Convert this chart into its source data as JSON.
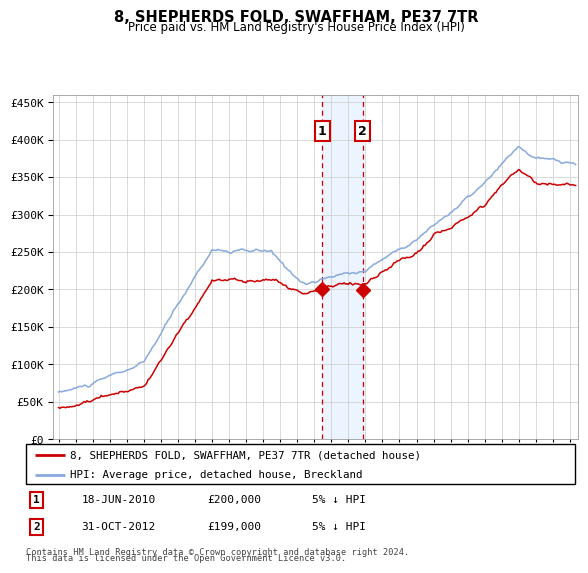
{
  "title": "8, SHEPHERDS FOLD, SWAFFHAM, PE37 7TR",
  "subtitle": "Price paid vs. HM Land Registry's House Price Index (HPI)",
  "legend_line1": "8, SHEPHERDS FOLD, SWAFFHAM, PE37 7TR (detached house)",
  "legend_line2": "HPI: Average price, detached house, Breckland",
  "footnote1": "Contains HM Land Registry data © Crown copyright and database right 2024.",
  "footnote2": "This data is licensed under the Open Government Licence v3.0.",
  "red_color": "#cc0000",
  "blue_color": "#88aadd",
  "ylim": [
    0,
    460000
  ],
  "yticks": [
    0,
    50000,
    100000,
    150000,
    200000,
    250000,
    300000,
    350000,
    400000,
    450000
  ],
  "xlim_start": 1994.7,
  "xlim_end": 2025.5,
  "purchase1_date": 2010.46,
  "purchase1_price": 200000,
  "purchase2_date": 2012.83,
  "purchase2_price": 199000,
  "table_data": [
    {
      "label": "1",
      "date": "18-JUN-2010",
      "price": "£200,000",
      "note": "5% ↓ HPI"
    },
    {
      "label": "2",
      "date": "31-OCT-2012",
      "price": "£199,000",
      "note": "5% ↓ HPI"
    }
  ]
}
